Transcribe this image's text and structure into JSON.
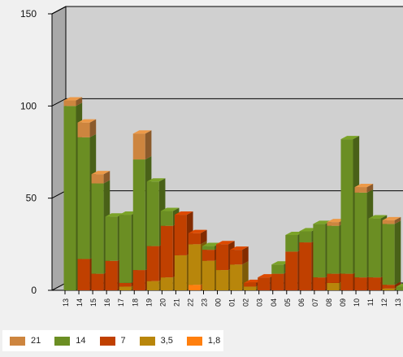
{
  "chart_data": {
    "type": "bar",
    "stacked": true,
    "three_d": true,
    "title": "",
    "xlabel": "",
    "ylabel": "",
    "ylim": [
      0,
      150
    ],
    "y_ticks": [
      "0",
      "50",
      "100",
      "150"
    ],
    "grid": true,
    "legend_position": "bottom-left",
    "categories": [
      "13",
      "14",
      "15",
      "16",
      "17",
      "18",
      "19",
      "20",
      "21",
      "22",
      "23",
      "00",
      "01",
      "02",
      "03",
      "04",
      "05",
      "06",
      "07",
      "08",
      "09",
      "10",
      "11",
      "12",
      "13"
    ],
    "series": [
      {
        "name": "1,8",
        "color": "#ff7f0e",
        "values": [
          0,
          0,
          0,
          0,
          0,
          0,
          0,
          0,
          0,
          3,
          0,
          0,
          0,
          0,
          0,
          0,
          0,
          0,
          0,
          0,
          0,
          0,
          0,
          0,
          0
        ]
      },
      {
        "name": "3,5",
        "color": "#b8860b",
        "values": [
          0,
          0,
          0,
          0,
          2,
          0,
          5,
          7,
          19,
          22,
          16,
          11,
          14,
          2,
          0,
          0,
          0,
          0,
          0,
          4,
          0,
          0,
          0,
          1,
          0
        ]
      },
      {
        "name": "7",
        "color": "#c04000",
        "values": [
          0,
          17,
          9,
          16,
          2,
          11,
          19,
          28,
          22,
          6,
          6,
          14,
          8,
          2,
          7,
          9,
          21,
          26,
          7,
          5,
          9,
          7,
          7,
          2,
          0
        ]
      },
      {
        "name": "14",
        "color": "#6b8e23",
        "values": [
          100,
          66,
          49,
          24,
          37,
          60,
          35,
          8,
          0,
          0,
          2,
          0,
          0,
          0,
          0,
          5,
          9,
          6,
          29,
          26,
          73,
          46,
          32,
          33,
          2
        ]
      },
      {
        "name": "21",
        "color": "#cd853f",
        "values": [
          3,
          8,
          5,
          0,
          0,
          14,
          0,
          0,
          0,
          0,
          0,
          0,
          0,
          0,
          0,
          0,
          0,
          0,
          0,
          2,
          0,
          3,
          0,
          2,
          0
        ]
      }
    ]
  },
  "legend": {
    "items": [
      {
        "label": "21",
        "color": "#cd853f"
      },
      {
        "label": "14",
        "color": "#6b8e23"
      },
      {
        "label": "7",
        "color": "#c04000"
      },
      {
        "label": "3,5",
        "color": "#b8860b"
      },
      {
        "label": "1,8",
        "color": "#ff7f0e"
      }
    ]
  }
}
